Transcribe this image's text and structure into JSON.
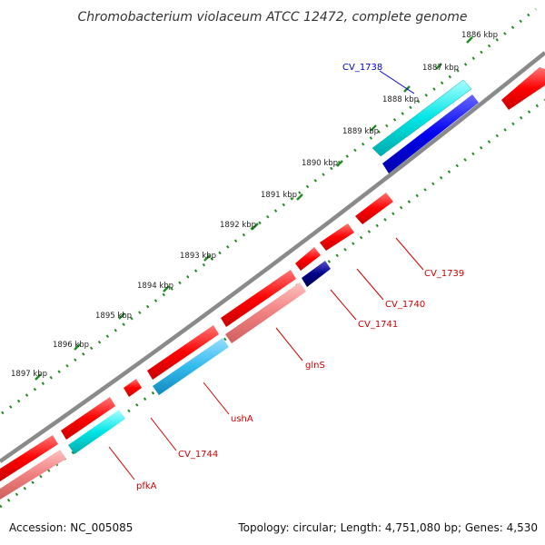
{
  "title": "Chromobacterium violaceum ATCC 12472, complete genome",
  "footer": {
    "accession": "Accession: NC_005085",
    "summary": "Topology: circular; Length: 4,751,080 bp; Genes: 4,530"
  },
  "kbp_labels": [
    "1886 kbp",
    "1887 kbp",
    "1888 kbp",
    "1889 kbp",
    "1890 kbp",
    "1891 kbp",
    "1892 kbp",
    "1893 kbp",
    "1894 kbp",
    "1895 kbp",
    "1896 kbp",
    "1897 kbp"
  ],
  "gene_labels": {
    "cv1738": "CV_1738",
    "cv1739": "CV_1739",
    "cv1740": "CV_1740",
    "cv1741": "CV_1741",
    "glns": "glnS",
    "usha": "ushA",
    "cv1744": "CV_1744",
    "pfka": "pfkA"
  },
  "colors": {
    "forward_gene": "#ff0000",
    "reverse_gene": "#ff8080",
    "cyan_gene": "#00e5e5",
    "blue_gene": "#0000ee",
    "light_blue_gene": "#33bbee",
    "backbone": "#888888",
    "tick": "#228b22",
    "label_red": "#cc0000",
    "label_blue": "#0000cc"
  }
}
